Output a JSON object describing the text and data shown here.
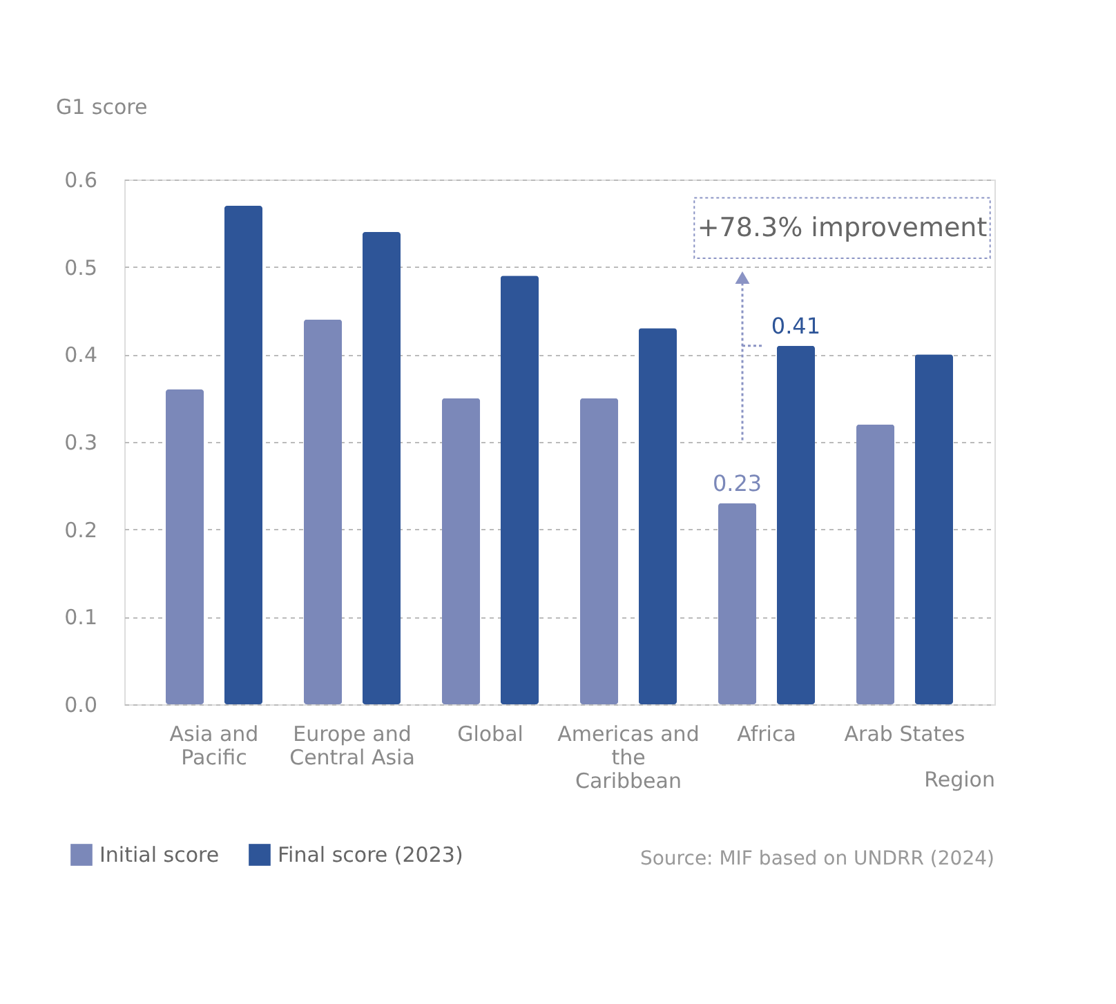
{
  "chart_data": {
    "type": "bar",
    "ylabel": "G1 score",
    "xlabel": "Region",
    "categories": [
      "Asia and Pacific",
      "Europe and Central Asia",
      "Global",
      "Americas and the Caribbean",
      "Africa",
      "Arab States"
    ],
    "series": [
      {
        "name": "Initial score",
        "color": "#7b88b9",
        "values": [
          0.36,
          0.44,
          0.35,
          0.35,
          0.23,
          0.32
        ],
        "value_labels": [
          null,
          null,
          null,
          null,
          "0.23",
          null
        ]
      },
      {
        "name": "Final score (2023)",
        "color": "#2e5598",
        "values": [
          0.57,
          0.54,
          0.49,
          0.43,
          0.41,
          0.4
        ],
        "value_labels": [
          null,
          null,
          null,
          null,
          "0.41",
          null
        ]
      }
    ],
    "ylim": [
      0,
      0.6
    ],
    "yticks": [
      {
        "value": 0,
        "label": "0.0"
      },
      0.1,
      0.2,
      0.3,
      0.4,
      0.5,
      0.6
    ],
    "grid": "y",
    "legend": "bottom left",
    "annotations": [
      "+78.3% improvement",
      "Source: MIF based on UNDRR (2024)"
    ]
  }
}
